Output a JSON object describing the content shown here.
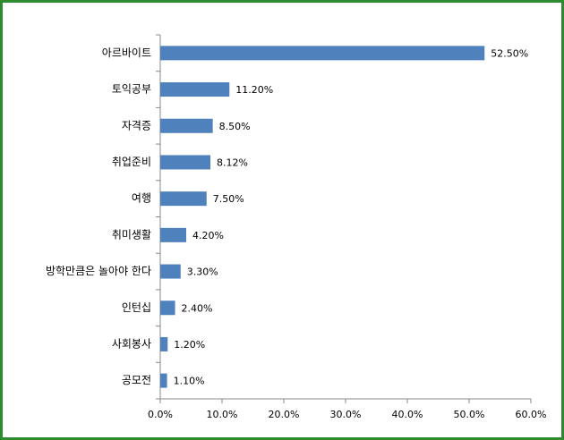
{
  "chart_data": {
    "type": "barh",
    "categories": [
      "아르바이트",
      "토익공부",
      "자격증",
      "취업준비",
      "여행",
      "취미생활",
      "방학만큼은 놀아야 한다",
      "인턴십",
      "사회봉사",
      "공모전"
    ],
    "values": [
      52.5,
      11.2,
      8.5,
      8.12,
      7.5,
      4.2,
      3.3,
      2.4,
      1.2,
      1.1
    ],
    "value_labels": [
      "52.50%",
      "11.20%",
      "8.50%",
      "8.12%",
      "7.50%",
      "4.20%",
      "3.30%",
      "2.40%",
      "1.20%",
      "1.10%"
    ],
    "color": "#4f81bd",
    "xlim": [
      0,
      60
    ],
    "xticks": [
      {
        "value": 0,
        "label": "0.0%"
      },
      {
        "value": 10,
        "label": "10.0%"
      },
      {
        "value": 20,
        "label": "20.0%"
      },
      {
        "value": 30,
        "label": "30.0%"
      },
      {
        "value": 40,
        "label": "40.0%"
      },
      {
        "value": 50,
        "label": "50.0%"
      },
      {
        "value": 60,
        "label": "60.0%"
      }
    ],
    "grid": false
  }
}
